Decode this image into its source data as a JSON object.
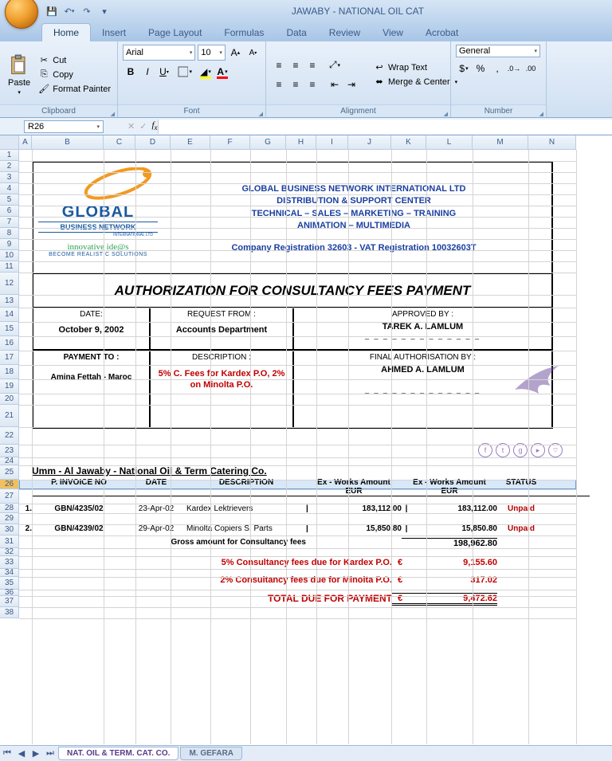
{
  "window": {
    "title": "JAWABY - NATIONAL OIL CAT"
  },
  "qat": {
    "save": "💾",
    "undo": "↶",
    "redo": "↷",
    "more": "▾"
  },
  "tabs": {
    "items": [
      "Home",
      "Insert",
      "Page Layout",
      "Formulas",
      "Data",
      "Review",
      "View",
      "Acrobat"
    ],
    "active": "Home"
  },
  "ribbon": {
    "clipboard": {
      "label": "Clipboard",
      "paste": "Paste",
      "cut": "Cut",
      "copy": "Copy",
      "format_painter": "Format Painter"
    },
    "font": {
      "label": "Font",
      "name": "Arial",
      "size": "10"
    },
    "alignment": {
      "label": "Alignment",
      "wrap": "Wrap Text",
      "merge": "Merge & Center"
    },
    "number": {
      "label": "Number",
      "format": "General"
    }
  },
  "namebox": "R26",
  "columns": {
    "letters": [
      "A",
      "B",
      "C",
      "D",
      "E",
      "F",
      "G",
      "H",
      "I",
      "J",
      "K",
      "L",
      "M",
      "N"
    ],
    "widths": [
      16,
      90,
      40,
      44,
      50,
      50,
      45,
      38,
      40,
      54,
      44,
      58,
      70,
      60
    ]
  },
  "rows": {
    "count": 38,
    "heights": {
      "1": 14,
      "2": 14,
      "3": 14,
      "4": 14,
      "5": 14,
      "6": 14,
      "7": 14,
      "8": 14,
      "9": 14,
      "10": 14,
      "11": 14,
      "12": 28,
      "13": 16,
      "14": 18,
      "15": 18,
      "16": 18,
      "17": 18,
      "18": 18,
      "19": 18,
      "20": 14,
      "21": 28,
      "22": 22,
      "23": 16,
      "24": 10,
      "25": 18,
      "26": 12,
      "27": 18,
      "28": 12,
      "29": 14,
      "30": 14,
      "31": 16,
      "32": 10,
      "33": 16,
      "34": 10,
      "35": 16,
      "36": 8,
      "37": 14,
      "38": 14
    }
  },
  "selected_row": 26,
  "doc": {
    "company": {
      "line1": "GLOBAL BUSINESS NETWORK INTERNATIONAL LTD",
      "line2": "DISTRIBUTION & SUPPORT CENTER",
      "line3": "TECHNICAL – SALES – MARKETING – TRAINING",
      "line4": "ANIMATION – MULTIMEDIA",
      "reg": "Company Registration 32603  -  VAT Registration 10032603T"
    },
    "title": "AUTHORIZATION FOR CONSULTANCY FEES  PAYMENT",
    "block": {
      "date_label": "DATE:",
      "date": "October 9, 2002",
      "reqfrom_label": "REQUEST FROM :",
      "reqfrom": "Accounts Department",
      "approved_label": "APPROVED BY :",
      "approved": "TAREK A. LAMLUM",
      "payto_label": "PAYMENT TO :",
      "payto": "Amina Fettah - Maroc",
      "desc_label": "DESCRIPTION :",
      "desc": "5% C. Fees for Kardex P.O, 2% on Minolta P.O.",
      "final_label": "FINAL AUTHORISATION BY :",
      "final": "AHMED A. LAMLUM",
      "dashes": "_ _ _ _ _ _ _ _ _ _ _ _ _"
    },
    "table": {
      "title": "Umm - Al Jawaby - National Oil & Term Catering Co.",
      "cols": {
        "inv": "P. INVOICE NO",
        "date": "DATE",
        "desc": "DESCRIPTION",
        "amt1": "Ex - Works Amount",
        "amt2": "Ex - Works Amount",
        "status": "STATUS",
        "cur": "EUR"
      },
      "rows": [
        {
          "n": "1.",
          "inv": "GBN/4235/02",
          "date": "23-Apr-02",
          "desc": "Kardex Lektrievers",
          "a1": "183,112.00",
          "a2": "183,112.00",
          "st": "Unpaid"
        },
        {
          "n": "2.",
          "inv": "GBN/4239/02",
          "date": "29-Apr-02",
          "desc": "Minolta Copiers S. Parts",
          "a1": "15,850.80",
          "a2": "15,850.80",
          "st": "Unpaid"
        }
      ],
      "gross_label": "Gross amount for Consultancy fees",
      "gross": "198,962.80",
      "fee1_label": "5% Consultancy fees due for  Kardex P.O.",
      "fee1": "9,155.60",
      "fee2_label": "2% Consultancy fees due for Minolta P.O.",
      "fee2": "317.02",
      "total_label": "TOTAL DUE FOR PAYMENT",
      "total": "9,472.62",
      "euro": "€",
      "bar": "|"
    },
    "logo": {
      "l1": "GLOBAL",
      "l2": "BUSINESS NETWORK",
      "l3": "INTERNATIONAL LTD",
      "l4": "innovative ide@s",
      "l5": "BECOME REALISTIC SOLUTIONS"
    }
  },
  "sheets": {
    "s1": "NAT. OIL & TERM. CAT. CO.",
    "s2": "M. GEFARA"
  },
  "colors": {
    "accent": "#1a3fa0",
    "red": "#c00000",
    "unpaid": "#b00000",
    "logo_orange": "#f29a1f"
  }
}
